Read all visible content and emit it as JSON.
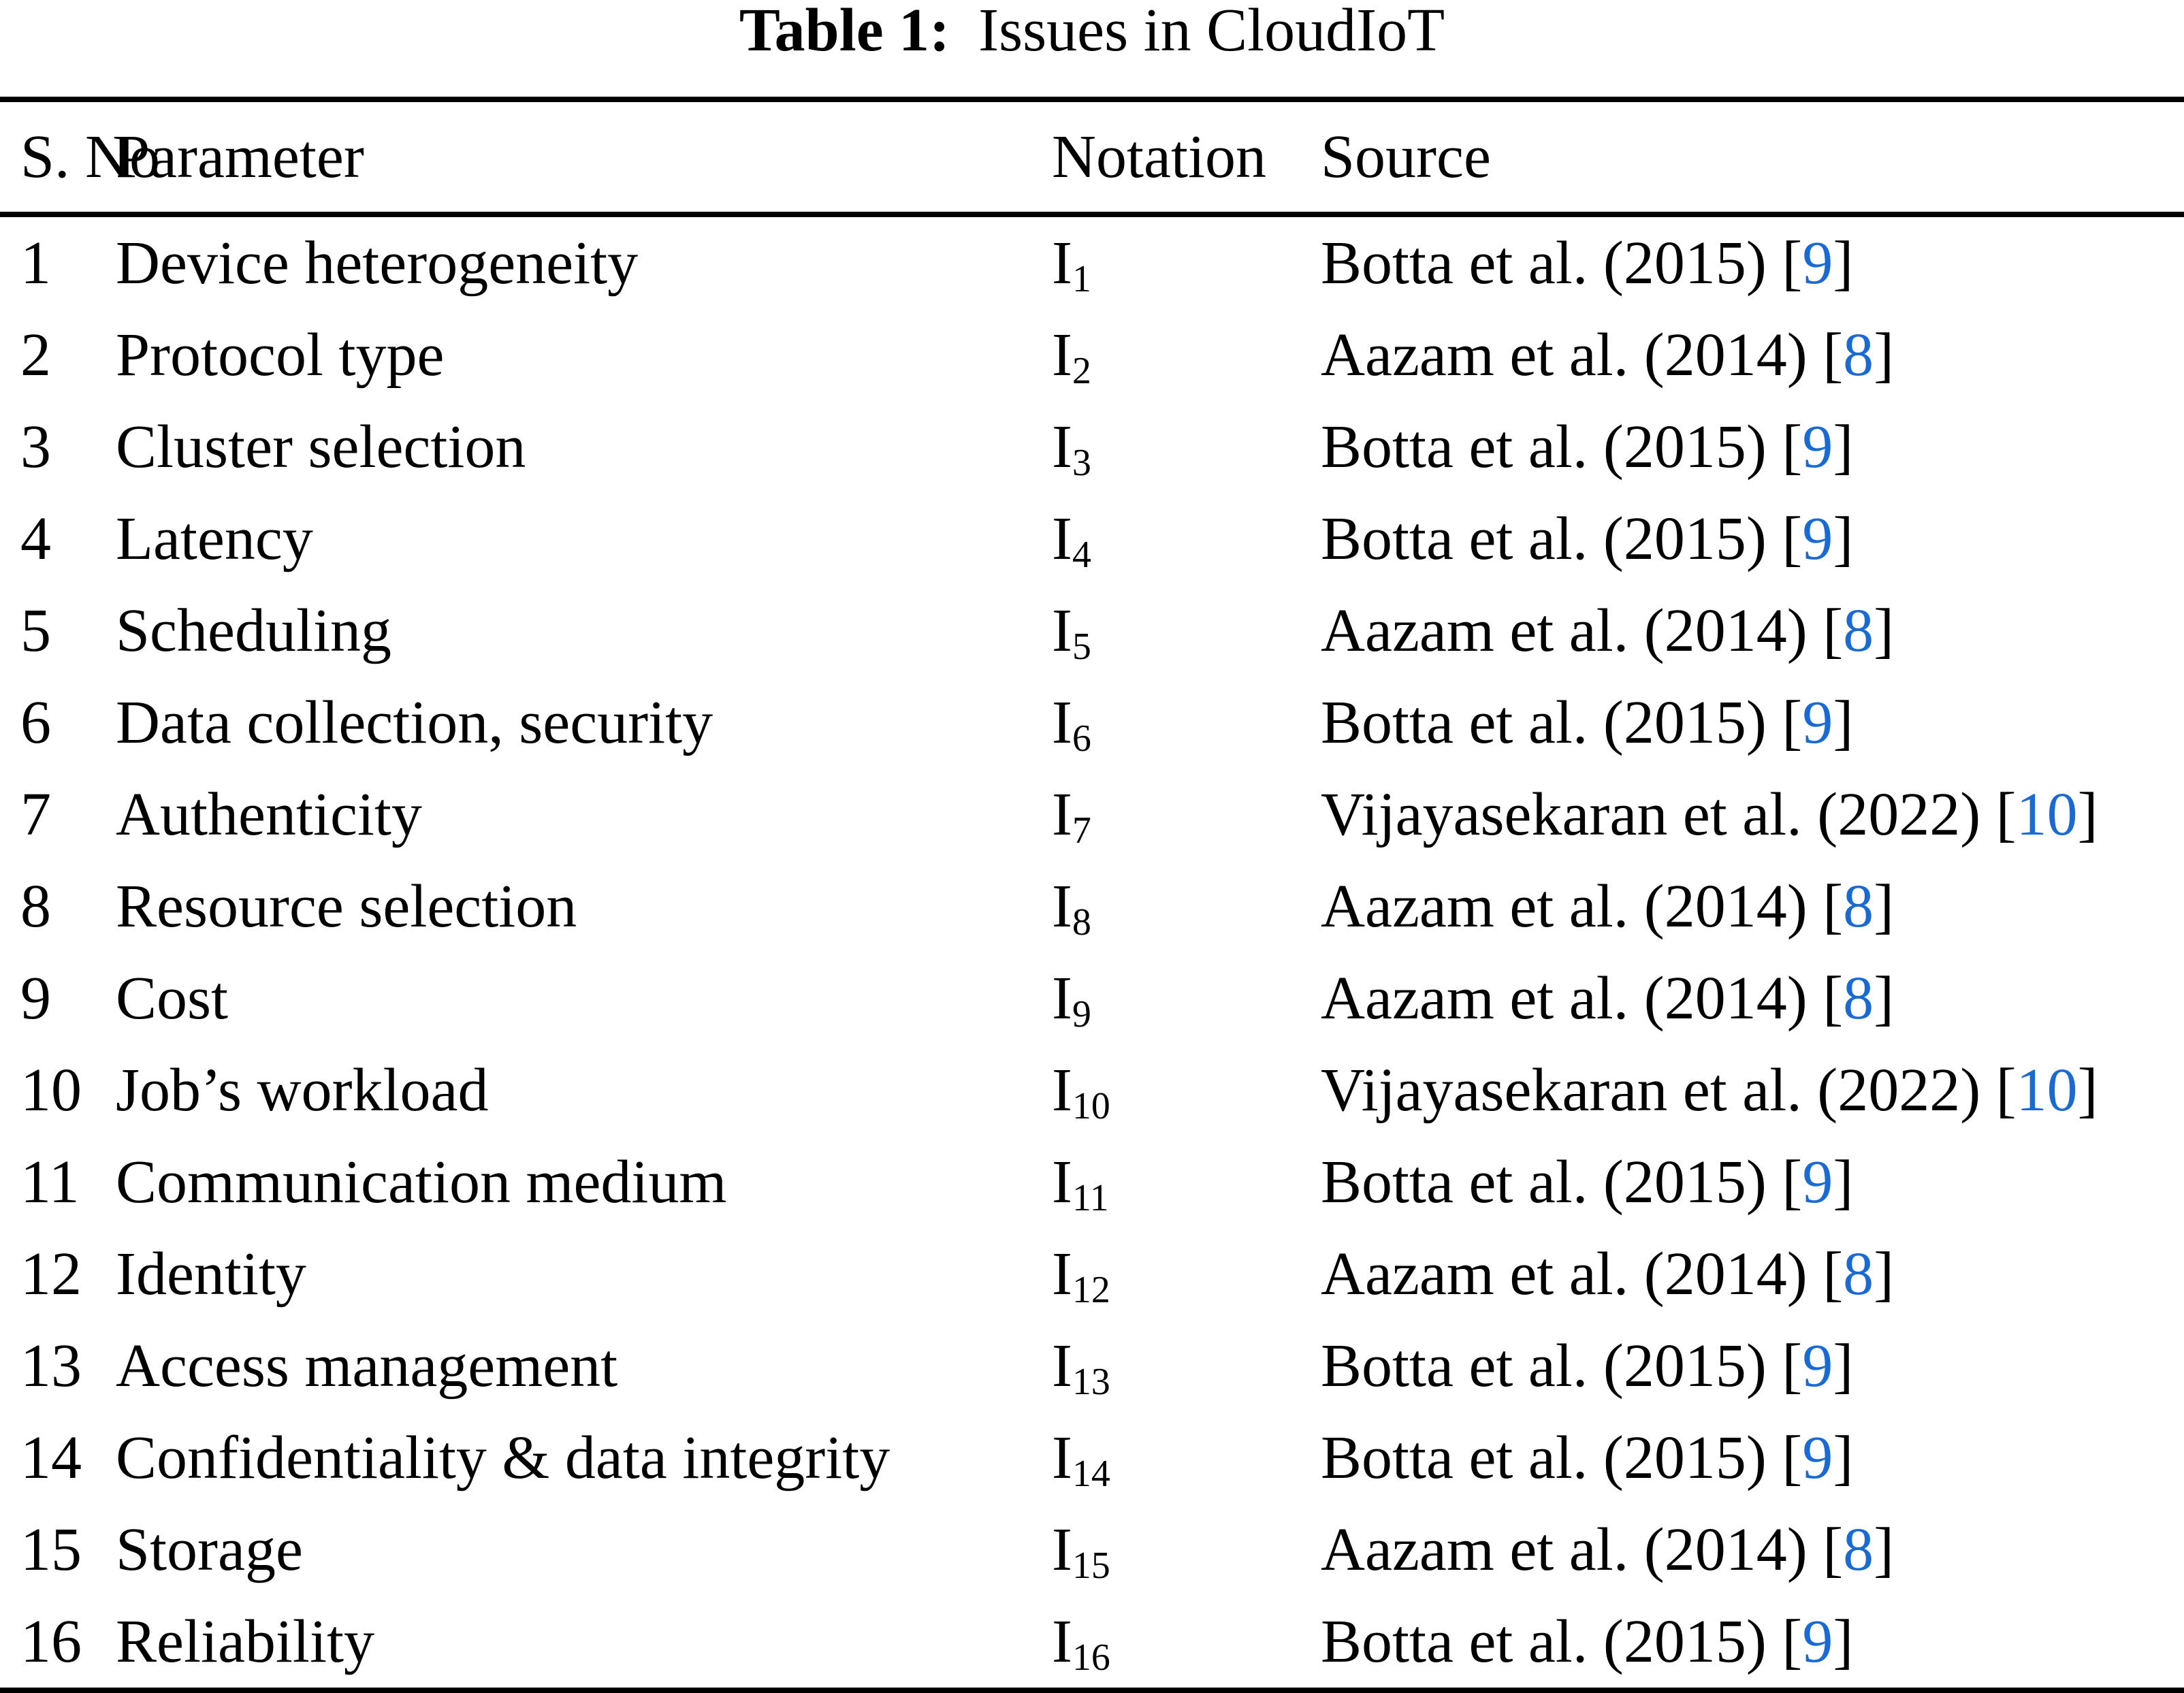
{
  "title": {
    "label": "Table 1:",
    "text": "Issues in CloudIoT"
  },
  "colors": {
    "ref_blue": "#1a6ad4",
    "text": "#000000",
    "background": "#ffffff"
  },
  "table": {
    "headers": {
      "s_no": "S. No",
      "parameter": "Parameter",
      "notation": "Notation",
      "source": "Source"
    },
    "notation_base": "I",
    "rows": [
      {
        "s_no": "1",
        "parameter": "Device heterogeneity",
        "notation_sub": "1",
        "source": "Botta et al. (2015)",
        "ref": "9"
      },
      {
        "s_no": "2",
        "parameter": "Protocol type",
        "notation_sub": "2",
        "source": "Aazam et al. (2014)",
        "ref": "8"
      },
      {
        "s_no": "3",
        "parameter": "Cluster selection",
        "notation_sub": "3",
        "source": "Botta et al. (2015)",
        "ref": "9"
      },
      {
        "s_no": "4",
        "parameter": "Latency",
        "notation_sub": "4",
        "source": "Botta et al. (2015)",
        "ref": "9"
      },
      {
        "s_no": "5",
        "parameter": "Scheduling",
        "notation_sub": "5",
        "source": "Aazam et al. (2014)",
        "ref": "8"
      },
      {
        "s_no": "6",
        "parameter": "Data collection, security",
        "notation_sub": "6",
        "source": "Botta et al. (2015)",
        "ref": "9"
      },
      {
        "s_no": "7",
        "parameter": "Authenticity",
        "notation_sub": "7",
        "source": "Vijayasekaran et al. (2022)",
        "ref": "10"
      },
      {
        "s_no": "8",
        "parameter": "Resource selection",
        "notation_sub": "8",
        "source": "Aazam et al. (2014)",
        "ref": "8"
      },
      {
        "s_no": "9",
        "parameter": "Cost",
        "notation_sub": "9",
        "source": "Aazam et al. (2014)",
        "ref": "8"
      },
      {
        "s_no": "10",
        "parameter": "Job’s workload",
        "notation_sub": "10",
        "source": "Vijayasekaran et al. (2022)",
        "ref": "10"
      },
      {
        "s_no": "11",
        "parameter": "Communication medium",
        "notation_sub": "11",
        "source": "Botta et al. (2015)",
        "ref": "9"
      },
      {
        "s_no": "12",
        "parameter": "Identity",
        "notation_sub": "12",
        "source": "Aazam et al. (2014)",
        "ref": "8"
      },
      {
        "s_no": "13",
        "parameter": "Access management",
        "notation_sub": "13",
        "source": "Botta et al. (2015)",
        "ref": "9"
      },
      {
        "s_no": "14",
        "parameter": "Confidentiality & data integrity",
        "notation_sub": "14",
        "source": "Botta et al. (2015)",
        "ref": "9"
      },
      {
        "s_no": "15",
        "parameter": "Storage",
        "notation_sub": "15",
        "source": "Aazam et al. (2014)",
        "ref": "8"
      },
      {
        "s_no": "16",
        "parameter": "Reliability",
        "notation_sub": "16",
        "source": "Botta et al. (2015)",
        "ref": "9"
      }
    ]
  }
}
